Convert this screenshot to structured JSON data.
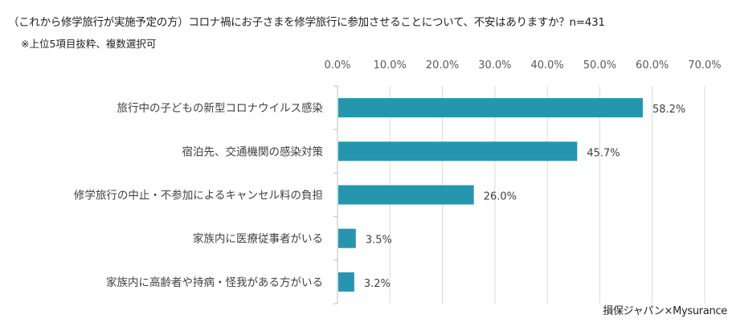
{
  "chart_data": {
    "type": "bar",
    "orientation": "horizontal",
    "title": "（これから修学旅行が実施予定の方）コロナ禍にお子さまを修学旅行に参加させることについて、不安はありますか？n=431",
    "subtitle": "※上位5項目抜粋、複数選択可",
    "source": "損保ジャパン×Mysurance",
    "categories": [
      "旅行中の子どもの新型コロナウイルス感染",
      "宿泊先、交通機関の感染対策",
      "修学旅行の中止・不参加によるキャンセル料の負担",
      "家族内に医療従事者がいる",
      "家族内に高齢者や持病・怪我がある方がいる"
    ],
    "values": [
      58.2,
      45.7,
      26.0,
      3.5,
      3.2
    ],
    "data_labels": [
      "58.2%",
      "45.7%",
      "26.0%",
      "3.5%",
      "3.2%"
    ],
    "xlim": [
      0,
      70
    ],
    "x_ticks": [
      "0.0%",
      "10.0%",
      "20.0%",
      "30.0%",
      "40.0%",
      "50.0%",
      "60.0%",
      "70.0%"
    ],
    "x_axis_position": "top",
    "grid": true,
    "bar_color": "#2596AE",
    "grid_color": "#D9D9D9"
  }
}
